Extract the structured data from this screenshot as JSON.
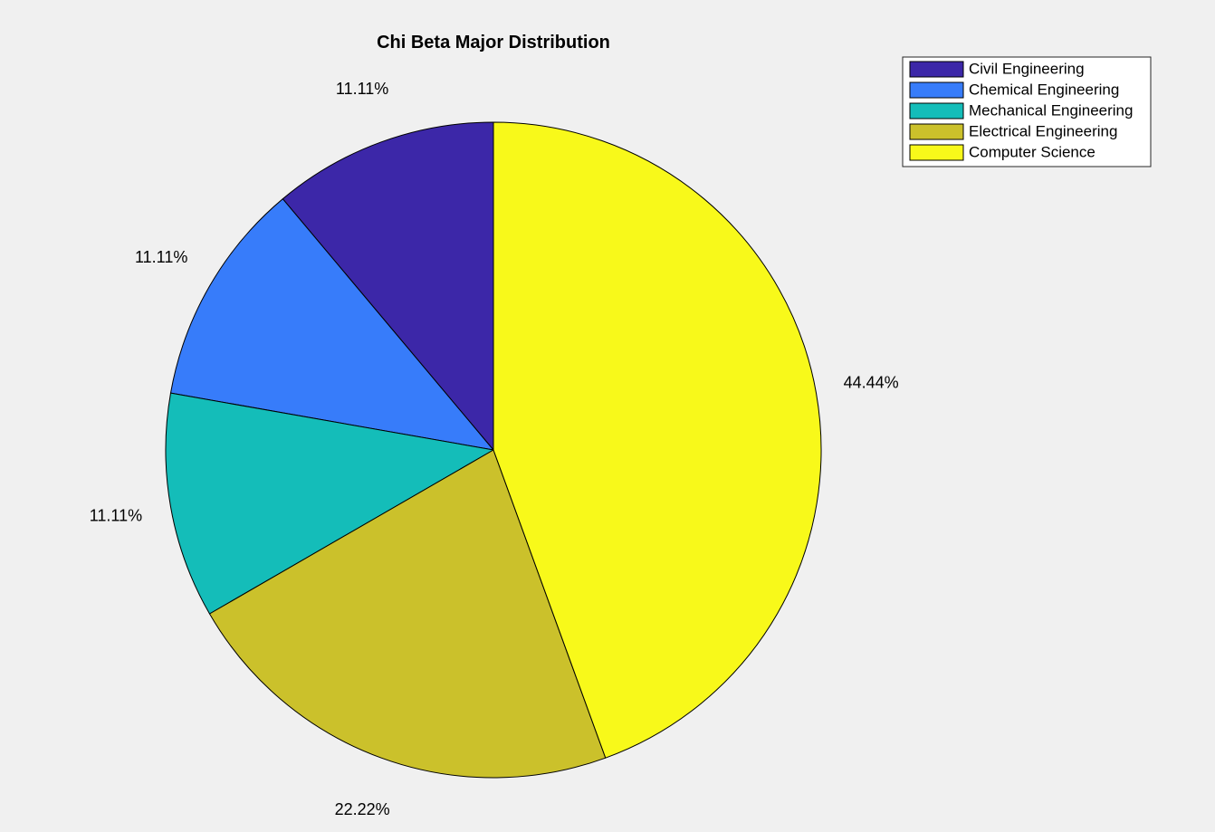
{
  "chart_data": {
    "type": "pie",
    "title": "Chi Beta Major Distribution",
    "categories": [
      "Civil Engineering",
      "Chemical Engineering",
      "Mechanical Engineering",
      "Electrical Engineering",
      "Computer Science"
    ],
    "values": [
      11.11,
      11.11,
      11.11,
      22.22,
      44.44
    ],
    "labels": [
      "11.11%",
      "11.11%",
      "11.11%",
      "22.22%",
      "44.44%"
    ],
    "colors": [
      "#3c27a8",
      "#377cfa",
      "#14bdb9",
      "#cbc12b",
      "#f8f91a"
    ],
    "direction": "counterclockwise",
    "legend": {
      "position": "top-right",
      "entries": [
        "Civil Engineering",
        "Chemical Engineering",
        "Mechanical Engineering",
        "Electrical Engineering",
        "Computer Science"
      ]
    }
  }
}
